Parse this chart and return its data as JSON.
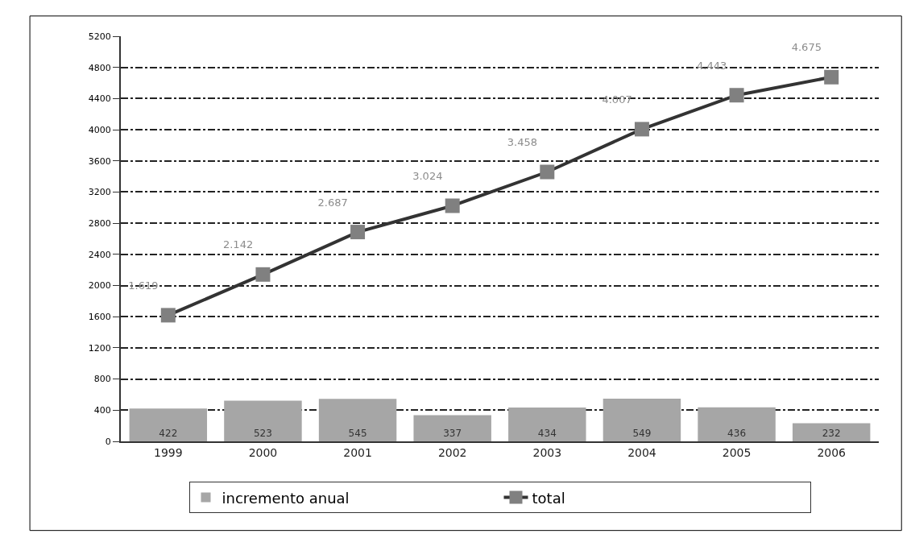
{
  "chart_data": {
    "type": "bar",
    "categories": [
      "1999",
      "2000",
      "2001",
      "2002",
      "2003",
      "2004",
      "2005",
      "2006"
    ],
    "series": [
      {
        "name": "incremento anual",
        "color": "#a6a6a6",
        "values": [
          422,
          523,
          545,
          337,
          434,
          549,
          436,
          232
        ],
        "value_labels": [
          "422",
          "523",
          "545",
          "337",
          "434",
          "549",
          "436",
          "232"
        ]
      },
      {
        "name": "total",
        "type": "line",
        "color": "#333333",
        "marker": "square",
        "values": [
          1619,
          2142,
          2687,
          3024,
          3458,
          4007,
          4443,
          4675
        ],
        "value_labels": [
          "1.619",
          "2.142",
          "2.687",
          "3.024",
          "3.458",
          "4.007",
          "4.443",
          "4.675"
        ]
      }
    ],
    "ylim": [
      0,
      5200
    ],
    "yticks": [
      0,
      400,
      800,
      1200,
      1600,
      2000,
      2400,
      2800,
      3200,
      3600,
      4000,
      4400,
      4800,
      5200
    ],
    "grid": "y",
    "legend": "bottom"
  }
}
